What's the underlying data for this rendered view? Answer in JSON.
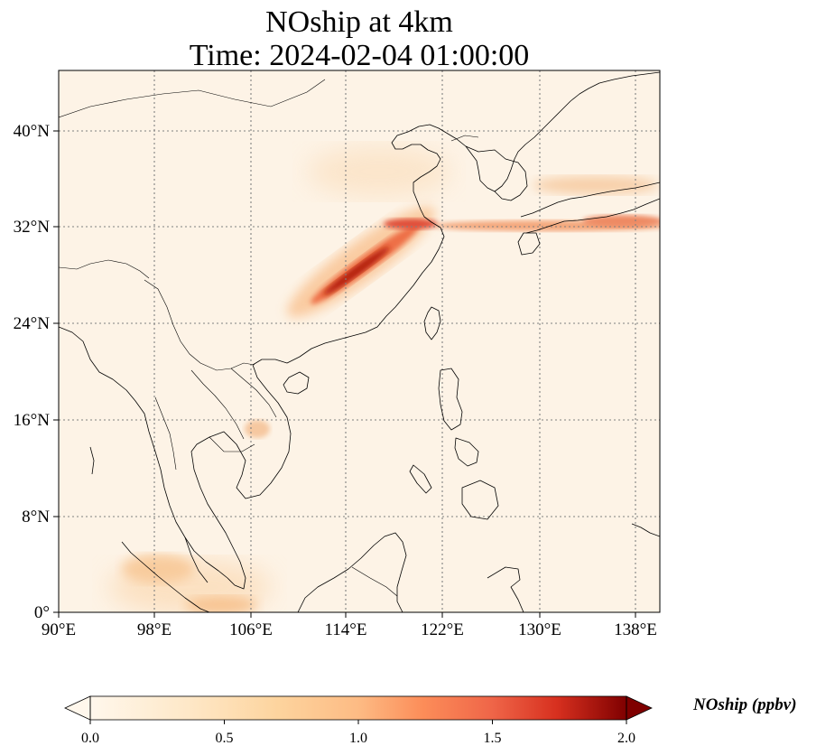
{
  "title": {
    "line1": "NOship at 4km",
    "line2": "Time: 2024-02-04 01:00:00"
  },
  "map": {
    "lon_range": [
      90,
      139
    ],
    "lat_range": [
      0,
      45
    ],
    "lon_ticks": [
      {
        "value": 90,
        "label": "90°E"
      },
      {
        "value": 98,
        "label": "98°E"
      },
      {
        "value": 106,
        "label": "106°E"
      },
      {
        "value": 114,
        "label": "114°E"
      },
      {
        "value": 122,
        "label": "122°E"
      },
      {
        "value": 130,
        "label": "130°E"
      },
      {
        "value": 138,
        "label": "138°E"
      }
    ],
    "lat_ticks": [
      {
        "value": 0,
        "label": "0°"
      },
      {
        "value": 8,
        "label": "8°N"
      },
      {
        "value": 16,
        "label": "16°N"
      },
      {
        "value": 24,
        "label": "24°N"
      },
      {
        "value": 32,
        "label": "32°N"
      },
      {
        "value": 40,
        "label": "40°N"
      }
    ],
    "gridlines": true,
    "field_colors": {
      "background": "#fdf3e6",
      "low": "#fde3c0",
      "mid": "#f9a869",
      "high": "#e04a30",
      "peak": "#9e1508"
    }
  },
  "colorbar": {
    "label": "NOship (ppbv)",
    "range": [
      0.0,
      2.0
    ],
    "ticks": [
      {
        "value": 0.0,
        "label": "0.0"
      },
      {
        "value": 0.5,
        "label": "0.5"
      },
      {
        "value": 1.0,
        "label": "1.0"
      },
      {
        "value": 1.5,
        "label": "1.5"
      },
      {
        "value": 2.0,
        "label": "2.0"
      }
    ],
    "colormap": "OrRd",
    "extend": "both"
  }
}
